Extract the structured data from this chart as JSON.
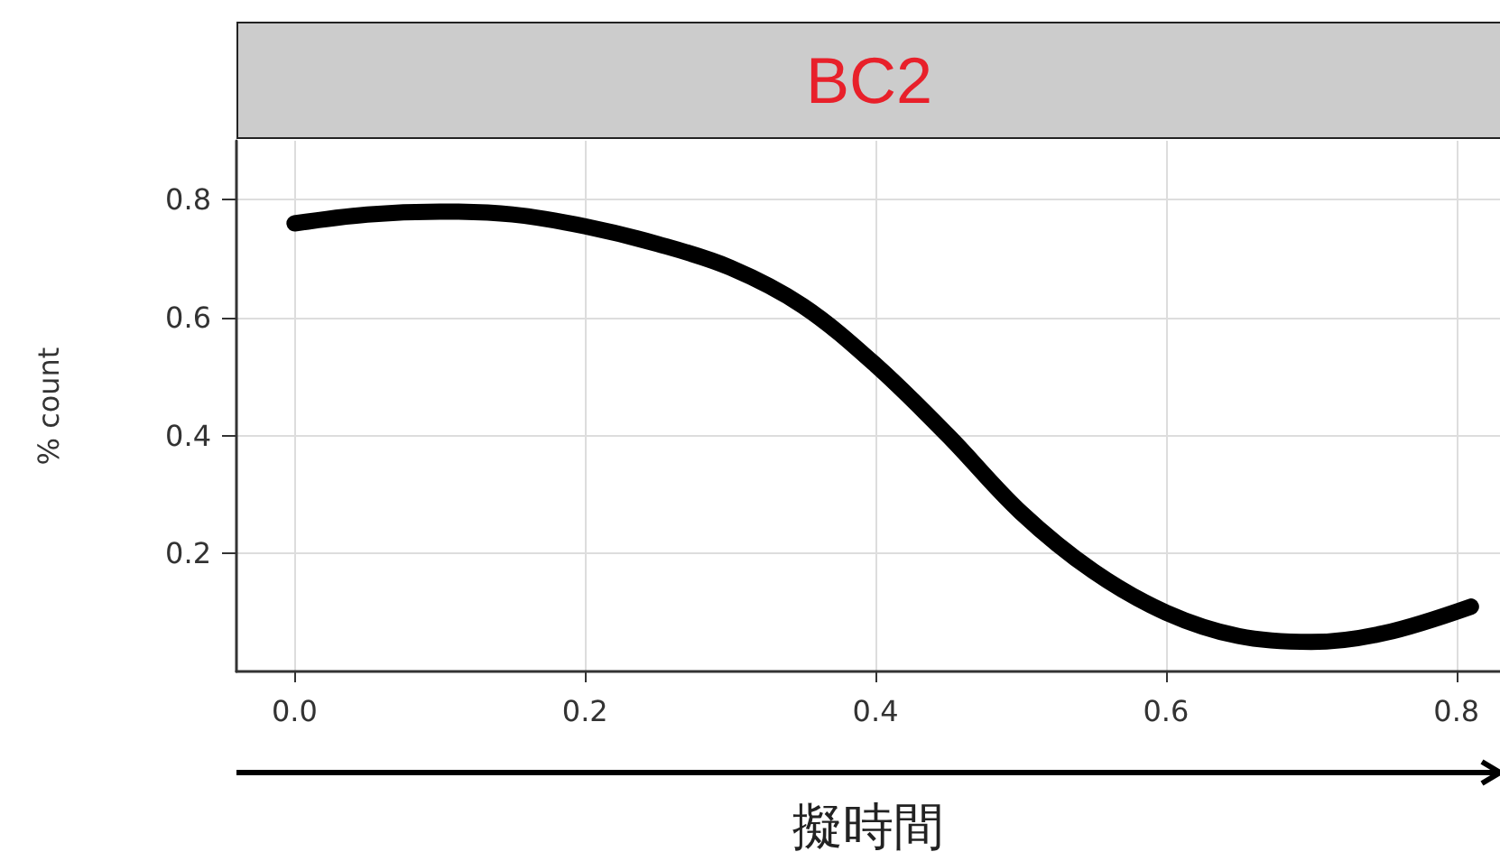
{
  "chart_data": {
    "type": "line",
    "title": "BC2",
    "xlabel": "擬時間",
    "ylabel": "% count",
    "x": [
      0,
      0.05,
      0.1,
      0.15,
      0.2,
      0.25,
      0.3,
      0.35,
      0.4,
      0.45,
      0.5,
      0.55,
      0.6,
      0.65,
      0.7,
      0.75,
      0.81
    ],
    "series": [
      {
        "color": "#000000",
        "values": [
          0.76,
          0.775,
          0.78,
          0.775,
          0.755,
          0.725,
          0.685,
          0.62,
          0.52,
          0.4,
          0.27,
          0.17,
          0.1,
          0.06,
          0.05,
          0.065,
          0.11
        ]
      }
    ],
    "xlim": [
      -0.04,
      0.83
    ],
    "xticks": [
      {
        "value": 0,
        "label": "0.0"
      },
      0.2,
      0.4,
      0.6,
      0.8
    ],
    "ylim": [
      0,
      0.9
    ],
    "yticks": [
      0.2,
      0.4,
      0.6,
      0.8
    ],
    "grid": true,
    "line_style": "solid"
  }
}
